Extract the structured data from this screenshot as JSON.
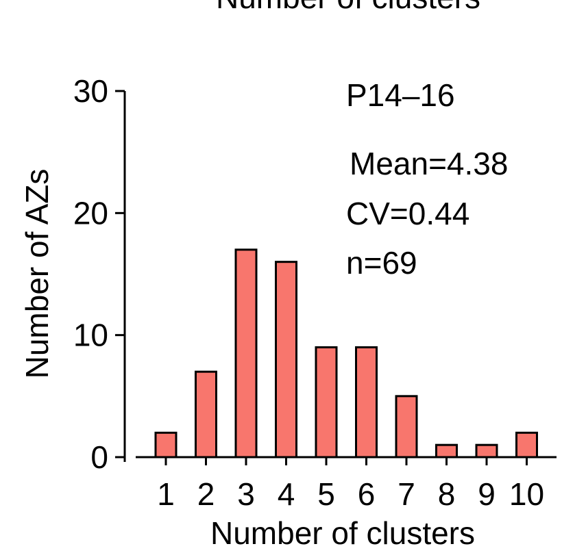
{
  "top_cut_label": "Number of clusters",
  "chart_data": {
    "type": "bar",
    "title": "P14–16",
    "xlabel": "Number of clusters",
    "ylabel": "Number of AZs",
    "categories": [
      "1",
      "2",
      "3",
      "4",
      "5",
      "6",
      "7",
      "8",
      "9",
      "10"
    ],
    "values": [
      2,
      7,
      17,
      16,
      9,
      9,
      5,
      1,
      1,
      2
    ],
    "ylim": [
      0,
      30
    ],
    "yticks": [
      "0",
      "10",
      "20",
      "30"
    ],
    "annotations": [
      "Mean=4.38",
      "CV=0.44",
      "n=69"
    ],
    "grid": false,
    "bar_color": "#F8766D",
    "bar_edge_color": "#000000"
  }
}
